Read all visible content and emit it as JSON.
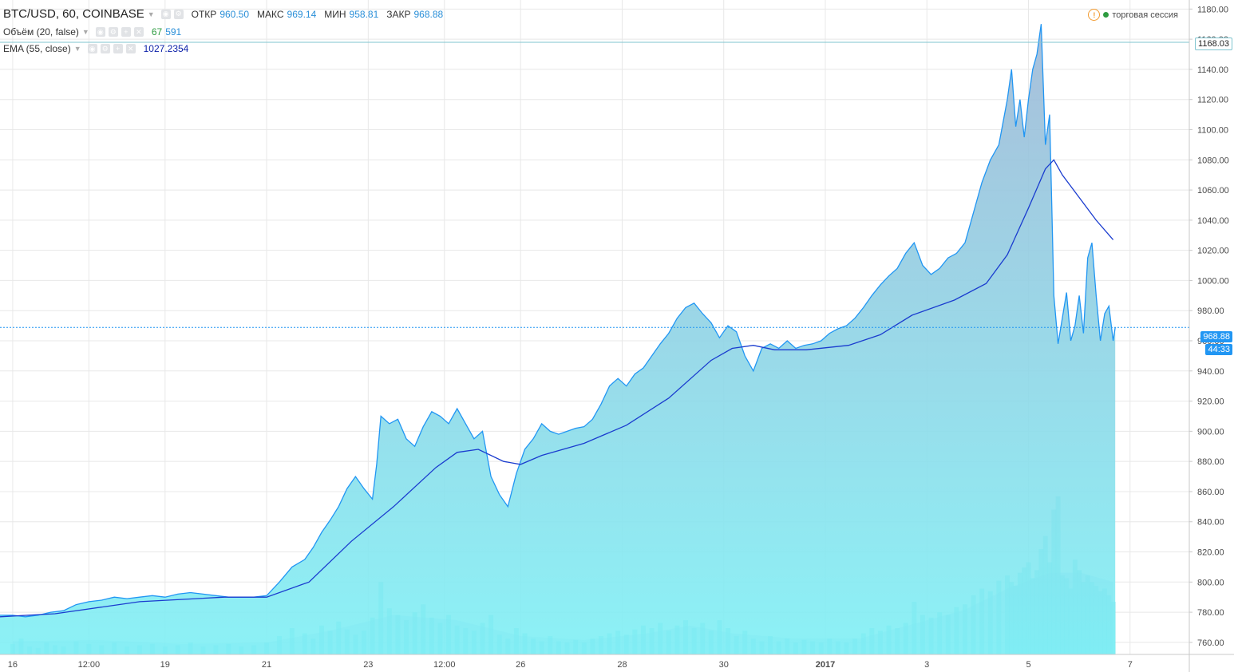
{
  "header": {
    "symbol": "BTC/USD, 60, COINBASE",
    "open_label": "ОТКР",
    "open_value": "960.50",
    "high_label": "МАКС",
    "high_value": "969.14",
    "low_label": "МИН",
    "low_value": "958.81",
    "close_label": "ЗАКР",
    "close_value": "968.88",
    "session_label": "торговая сессия"
  },
  "indicators": {
    "volume": {
      "label": "Объём (20, false)",
      "value1": "67",
      "value2": "591"
    },
    "ema": {
      "label": "EMA (55, close)",
      "value": "1027.2354"
    }
  },
  "price_tags": {
    "high_line": "1168.03",
    "last_price": "968.88",
    "countdown": "44:33"
  },
  "colors": {
    "area_line": "#2196f3",
    "area_fill_top": "#9fb8d6",
    "area_fill_bottom": "#7ff0f5",
    "ema_line": "#1a3ccf",
    "volume_bars": "#3fd4df",
    "volume_ma": "#6fb2e8",
    "grid": "#e8e8e8",
    "last_price_line": "#2196f3",
    "tag_bg": "#2196f3",
    "high_line": "#7fc4cf"
  },
  "chart_data": {
    "type": "area",
    "ylim": [
      752,
      1186
    ],
    "y_ticks": [
      760,
      780,
      800,
      820,
      840,
      860,
      880,
      900,
      920,
      940,
      960,
      980,
      1000,
      1020,
      1040,
      1060,
      1080,
      1100,
      1120,
      1140,
      1160,
      1180
    ],
    "x_range_hours": [
      -6,
      556
    ],
    "x_ticks": [
      {
        "hour": 0,
        "label": "16"
      },
      {
        "hour": 36,
        "label": "12:00"
      },
      {
        "hour": 72,
        "label": "19"
      },
      {
        "hour": 120,
        "label": "21"
      },
      {
        "hour": 168,
        "label": "23"
      },
      {
        "hour": 204,
        "label": "12:00"
      },
      {
        "hour": 240,
        "label": "26"
      },
      {
        "hour": 288,
        "label": "28"
      },
      {
        "hour": 336,
        "label": "30"
      },
      {
        "hour": 384,
        "label": "2017"
      },
      {
        "hour": 432,
        "label": "3"
      },
      {
        "hour": 480,
        "label": "5"
      },
      {
        "hour": 528,
        "label": "7"
      }
    ],
    "series": [
      {
        "type": "area",
        "points": [
          [
            -6,
            778
          ],
          [
            0,
            778
          ],
          [
            6,
            777
          ],
          [
            12,
            778
          ],
          [
            18,
            780
          ],
          [
            24,
            781
          ],
          [
            30,
            785
          ],
          [
            36,
            787
          ],
          [
            42,
            788
          ],
          [
            48,
            790
          ],
          [
            54,
            789
          ],
          [
            60,
            790
          ],
          [
            66,
            791
          ],
          [
            72,
            790
          ],
          [
            78,
            792
          ],
          [
            84,
            793
          ],
          [
            90,
            792
          ],
          [
            96,
            791
          ],
          [
            102,
            790
          ],
          [
            108,
            790
          ],
          [
            114,
            790
          ],
          [
            120,
            791
          ],
          [
            126,
            800
          ],
          [
            132,
            810
          ],
          [
            138,
            815
          ],
          [
            142,
            823
          ],
          [
            146,
            833
          ],
          [
            150,
            841
          ],
          [
            154,
            850
          ],
          [
            158,
            862
          ],
          [
            162,
            870
          ],
          [
            166,
            862
          ],
          [
            170,
            855
          ],
          [
            172,
            878
          ],
          [
            174,
            910
          ],
          [
            178,
            905
          ],
          [
            182,
            908
          ],
          [
            186,
            895
          ],
          [
            190,
            890
          ],
          [
            194,
            903
          ],
          [
            198,
            913
          ],
          [
            202,
            910
          ],
          [
            206,
            905
          ],
          [
            210,
            915
          ],
          [
            214,
            905
          ],
          [
            218,
            895
          ],
          [
            222,
            900
          ],
          [
            226,
            870
          ],
          [
            230,
            858
          ],
          [
            234,
            850
          ],
          [
            238,
            872
          ],
          [
            242,
            888
          ],
          [
            246,
            895
          ],
          [
            250,
            905
          ],
          [
            254,
            900
          ],
          [
            258,
            898
          ],
          [
            262,
            900
          ],
          [
            266,
            902
          ],
          [
            270,
            903
          ],
          [
            274,
            908
          ],
          [
            278,
            918
          ],
          [
            282,
            930
          ],
          [
            286,
            935
          ],
          [
            290,
            930
          ],
          [
            294,
            938
          ],
          [
            298,
            942
          ],
          [
            302,
            950
          ],
          [
            306,
            958
          ],
          [
            310,
            965
          ],
          [
            314,
            975
          ],
          [
            318,
            982
          ],
          [
            322,
            985
          ],
          [
            326,
            978
          ],
          [
            330,
            972
          ],
          [
            334,
            962
          ],
          [
            338,
            970
          ],
          [
            342,
            966
          ],
          [
            346,
            950
          ],
          [
            350,
            940
          ],
          [
            354,
            955
          ],
          [
            358,
            958
          ],
          [
            362,
            955
          ],
          [
            366,
            960
          ],
          [
            370,
            955
          ],
          [
            374,
            957
          ],
          [
            378,
            958
          ],
          [
            382,
            960
          ],
          [
            386,
            965
          ],
          [
            390,
            968
          ],
          [
            394,
            970
          ],
          [
            398,
            975
          ],
          [
            402,
            982
          ],
          [
            406,
            990
          ],
          [
            410,
            997
          ],
          [
            414,
            1003
          ],
          [
            418,
            1008
          ],
          [
            422,
            1018
          ],
          [
            426,
            1025
          ],
          [
            430,
            1010
          ],
          [
            434,
            1004
          ],
          [
            438,
            1008
          ],
          [
            442,
            1015
          ],
          [
            446,
            1018
          ],
          [
            450,
            1025
          ],
          [
            454,
            1045
          ],
          [
            458,
            1065
          ],
          [
            462,
            1080
          ],
          [
            466,
            1090
          ],
          [
            470,
            1120
          ],
          [
            472,
            1140
          ],
          [
            474,
            1102
          ],
          [
            476,
            1120
          ],
          [
            478,
            1095
          ],
          [
            480,
            1120
          ],
          [
            482,
            1140
          ],
          [
            484,
            1150
          ],
          [
            486,
            1170
          ],
          [
            488,
            1090
          ],
          [
            490,
            1110
          ],
          [
            491,
            1050
          ],
          [
            492,
            990
          ],
          [
            494,
            958
          ],
          [
            496,
            975
          ],
          [
            498,
            992
          ],
          [
            500,
            960
          ],
          [
            502,
            970
          ],
          [
            504,
            990
          ],
          [
            506,
            965
          ],
          [
            508,
            1015
          ],
          [
            510,
            1025
          ],
          [
            512,
            990
          ],
          [
            514,
            960
          ],
          [
            516,
            978
          ],
          [
            518,
            983
          ],
          [
            520,
            960
          ],
          [
            521,
            968.88
          ]
        ]
      },
      {
        "type": "line",
        "name": "EMA (55, close)",
        "points": [
          [
            -6,
            777
          ],
          [
            20,
            779
          ],
          [
            60,
            787
          ],
          [
            100,
            790
          ],
          [
            120,
            790
          ],
          [
            140,
            800
          ],
          [
            160,
            827
          ],
          [
            180,
            850
          ],
          [
            200,
            876
          ],
          [
            210,
            886
          ],
          [
            220,
            888
          ],
          [
            232,
            880
          ],
          [
            240,
            878
          ],
          [
            250,
            884
          ],
          [
            270,
            892
          ],
          [
            290,
            904
          ],
          [
            310,
            922
          ],
          [
            330,
            947
          ],
          [
            340,
            955
          ],
          [
            350,
            957
          ],
          [
            360,
            954
          ],
          [
            375,
            954
          ],
          [
            395,
            957
          ],
          [
            410,
            964
          ],
          [
            425,
            977
          ],
          [
            445,
            987
          ],
          [
            460,
            998
          ],
          [
            470,
            1017
          ],
          [
            480,
            1048
          ],
          [
            488,
            1074
          ],
          [
            492,
            1080
          ],
          [
            496,
            1070
          ],
          [
            504,
            1055
          ],
          [
            512,
            1040
          ],
          [
            520,
            1027
          ]
        ]
      }
    ],
    "volume": {
      "bars": [
        [
          0,
          8
        ],
        [
          4,
          12
        ],
        [
          8,
          6
        ],
        [
          12,
          5
        ],
        [
          16,
          9
        ],
        [
          20,
          7
        ],
        [
          24,
          6
        ],
        [
          30,
          10
        ],
        [
          36,
          8
        ],
        [
          42,
          7
        ],
        [
          48,
          9
        ],
        [
          54,
          6
        ],
        [
          60,
          7
        ],
        [
          66,
          8
        ],
        [
          72,
          6
        ],
        [
          78,
          7
        ],
        [
          84,
          9
        ],
        [
          90,
          6
        ],
        [
          96,
          7
        ],
        [
          102,
          8
        ],
        [
          108,
          6
        ],
        [
          114,
          7
        ],
        [
          120,
          9
        ],
        [
          126,
          14
        ],
        [
          132,
          20
        ],
        [
          138,
          16
        ],
        [
          142,
          12
        ],
        [
          146,
          22
        ],
        [
          150,
          18
        ],
        [
          154,
          25
        ],
        [
          158,
          19
        ],
        [
          162,
          15
        ],
        [
          166,
          18
        ],
        [
          170,
          28
        ],
        [
          174,
          55
        ],
        [
          178,
          35
        ],
        [
          182,
          30
        ],
        [
          186,
          26
        ],
        [
          190,
          32
        ],
        [
          194,
          38
        ],
        [
          198,
          28
        ],
        [
          202,
          24
        ],
        [
          206,
          30
        ],
        [
          210,
          22
        ],
        [
          214,
          20
        ],
        [
          218,
          18
        ],
        [
          222,
          24
        ],
        [
          226,
          30
        ],
        [
          230,
          15
        ],
        [
          234,
          12
        ],
        [
          238,
          20
        ],
        [
          242,
          16
        ],
        [
          246,
          12
        ],
        [
          250,
          10
        ],
        [
          254,
          14
        ],
        [
          258,
          10
        ],
        [
          262,
          9
        ],
        [
          266,
          11
        ],
        [
          270,
          9
        ],
        [
          274,
          12
        ],
        [
          278,
          14
        ],
        [
          282,
          16
        ],
        [
          286,
          18
        ],
        [
          290,
          15
        ],
        [
          294,
          19
        ],
        [
          298,
          22
        ],
        [
          302,
          20
        ],
        [
          306,
          24
        ],
        [
          310,
          18
        ],
        [
          314,
          22
        ],
        [
          318,
          26
        ],
        [
          322,
          20
        ],
        [
          326,
          24
        ],
        [
          330,
          18
        ],
        [
          334,
          26
        ],
        [
          338,
          20
        ],
        [
          342,
          14
        ],
        [
          346,
          18
        ],
        [
          350,
          12
        ],
        [
          354,
          10
        ],
        [
          358,
          14
        ],
        [
          362,
          10
        ],
        [
          366,
          12
        ],
        [
          370,
          9
        ],
        [
          374,
          11
        ],
        [
          378,
          10
        ],
        [
          382,
          9
        ],
        [
          386,
          12
        ],
        [
          390,
          10
        ],
        [
          394,
          9
        ],
        [
          398,
          12
        ],
        [
          402,
          16
        ],
        [
          406,
          20
        ],
        [
          410,
          18
        ],
        [
          414,
          22
        ],
        [
          418,
          20
        ],
        [
          422,
          24
        ],
        [
          426,
          40
        ],
        [
          430,
          30
        ],
        [
          434,
          28
        ],
        [
          438,
          32
        ],
        [
          442,
          30
        ],
        [
          446,
          36
        ],
        [
          450,
          38
        ],
        [
          454,
          45
        ],
        [
          458,
          50
        ],
        [
          462,
          48
        ],
        [
          466,
          56
        ],
        [
          470,
          60
        ],
        [
          472,
          55
        ],
        [
          474,
          52
        ],
        [
          476,
          62
        ],
        [
          478,
          66
        ],
        [
          480,
          70
        ],
        [
          482,
          58
        ],
        [
          484,
          64
        ],
        [
          486,
          80
        ],
        [
          488,
          90
        ],
        [
          490,
          70
        ],
        [
          492,
          110
        ],
        [
          494,
          120
        ],
        [
          496,
          60
        ],
        [
          498,
          58
        ],
        [
          500,
          50
        ],
        [
          502,
          72
        ],
        [
          504,
          64
        ],
        [
          506,
          55
        ],
        [
          508,
          60
        ],
        [
          510,
          55
        ],
        [
          512,
          52
        ],
        [
          514,
          48
        ],
        [
          516,
          50
        ],
        [
          518,
          45
        ],
        [
          520,
          40
        ]
      ],
      "ma": [
        [
          0,
          10
        ],
        [
          40,
          11
        ],
        [
          80,
          8
        ],
        [
          120,
          9
        ],
        [
          150,
          18
        ],
        [
          180,
          30
        ],
        [
          210,
          26
        ],
        [
          240,
          14
        ],
        [
          270,
          11
        ],
        [
          300,
          16
        ],
        [
          320,
          22
        ],
        [
          340,
          16
        ],
        [
          370,
          12
        ],
        [
          400,
          12
        ],
        [
          430,
          25
        ],
        [
          450,
          34
        ],
        [
          470,
          50
        ],
        [
          490,
          62
        ],
        [
          505,
          62
        ],
        [
          520,
          55
        ]
      ]
    }
  }
}
